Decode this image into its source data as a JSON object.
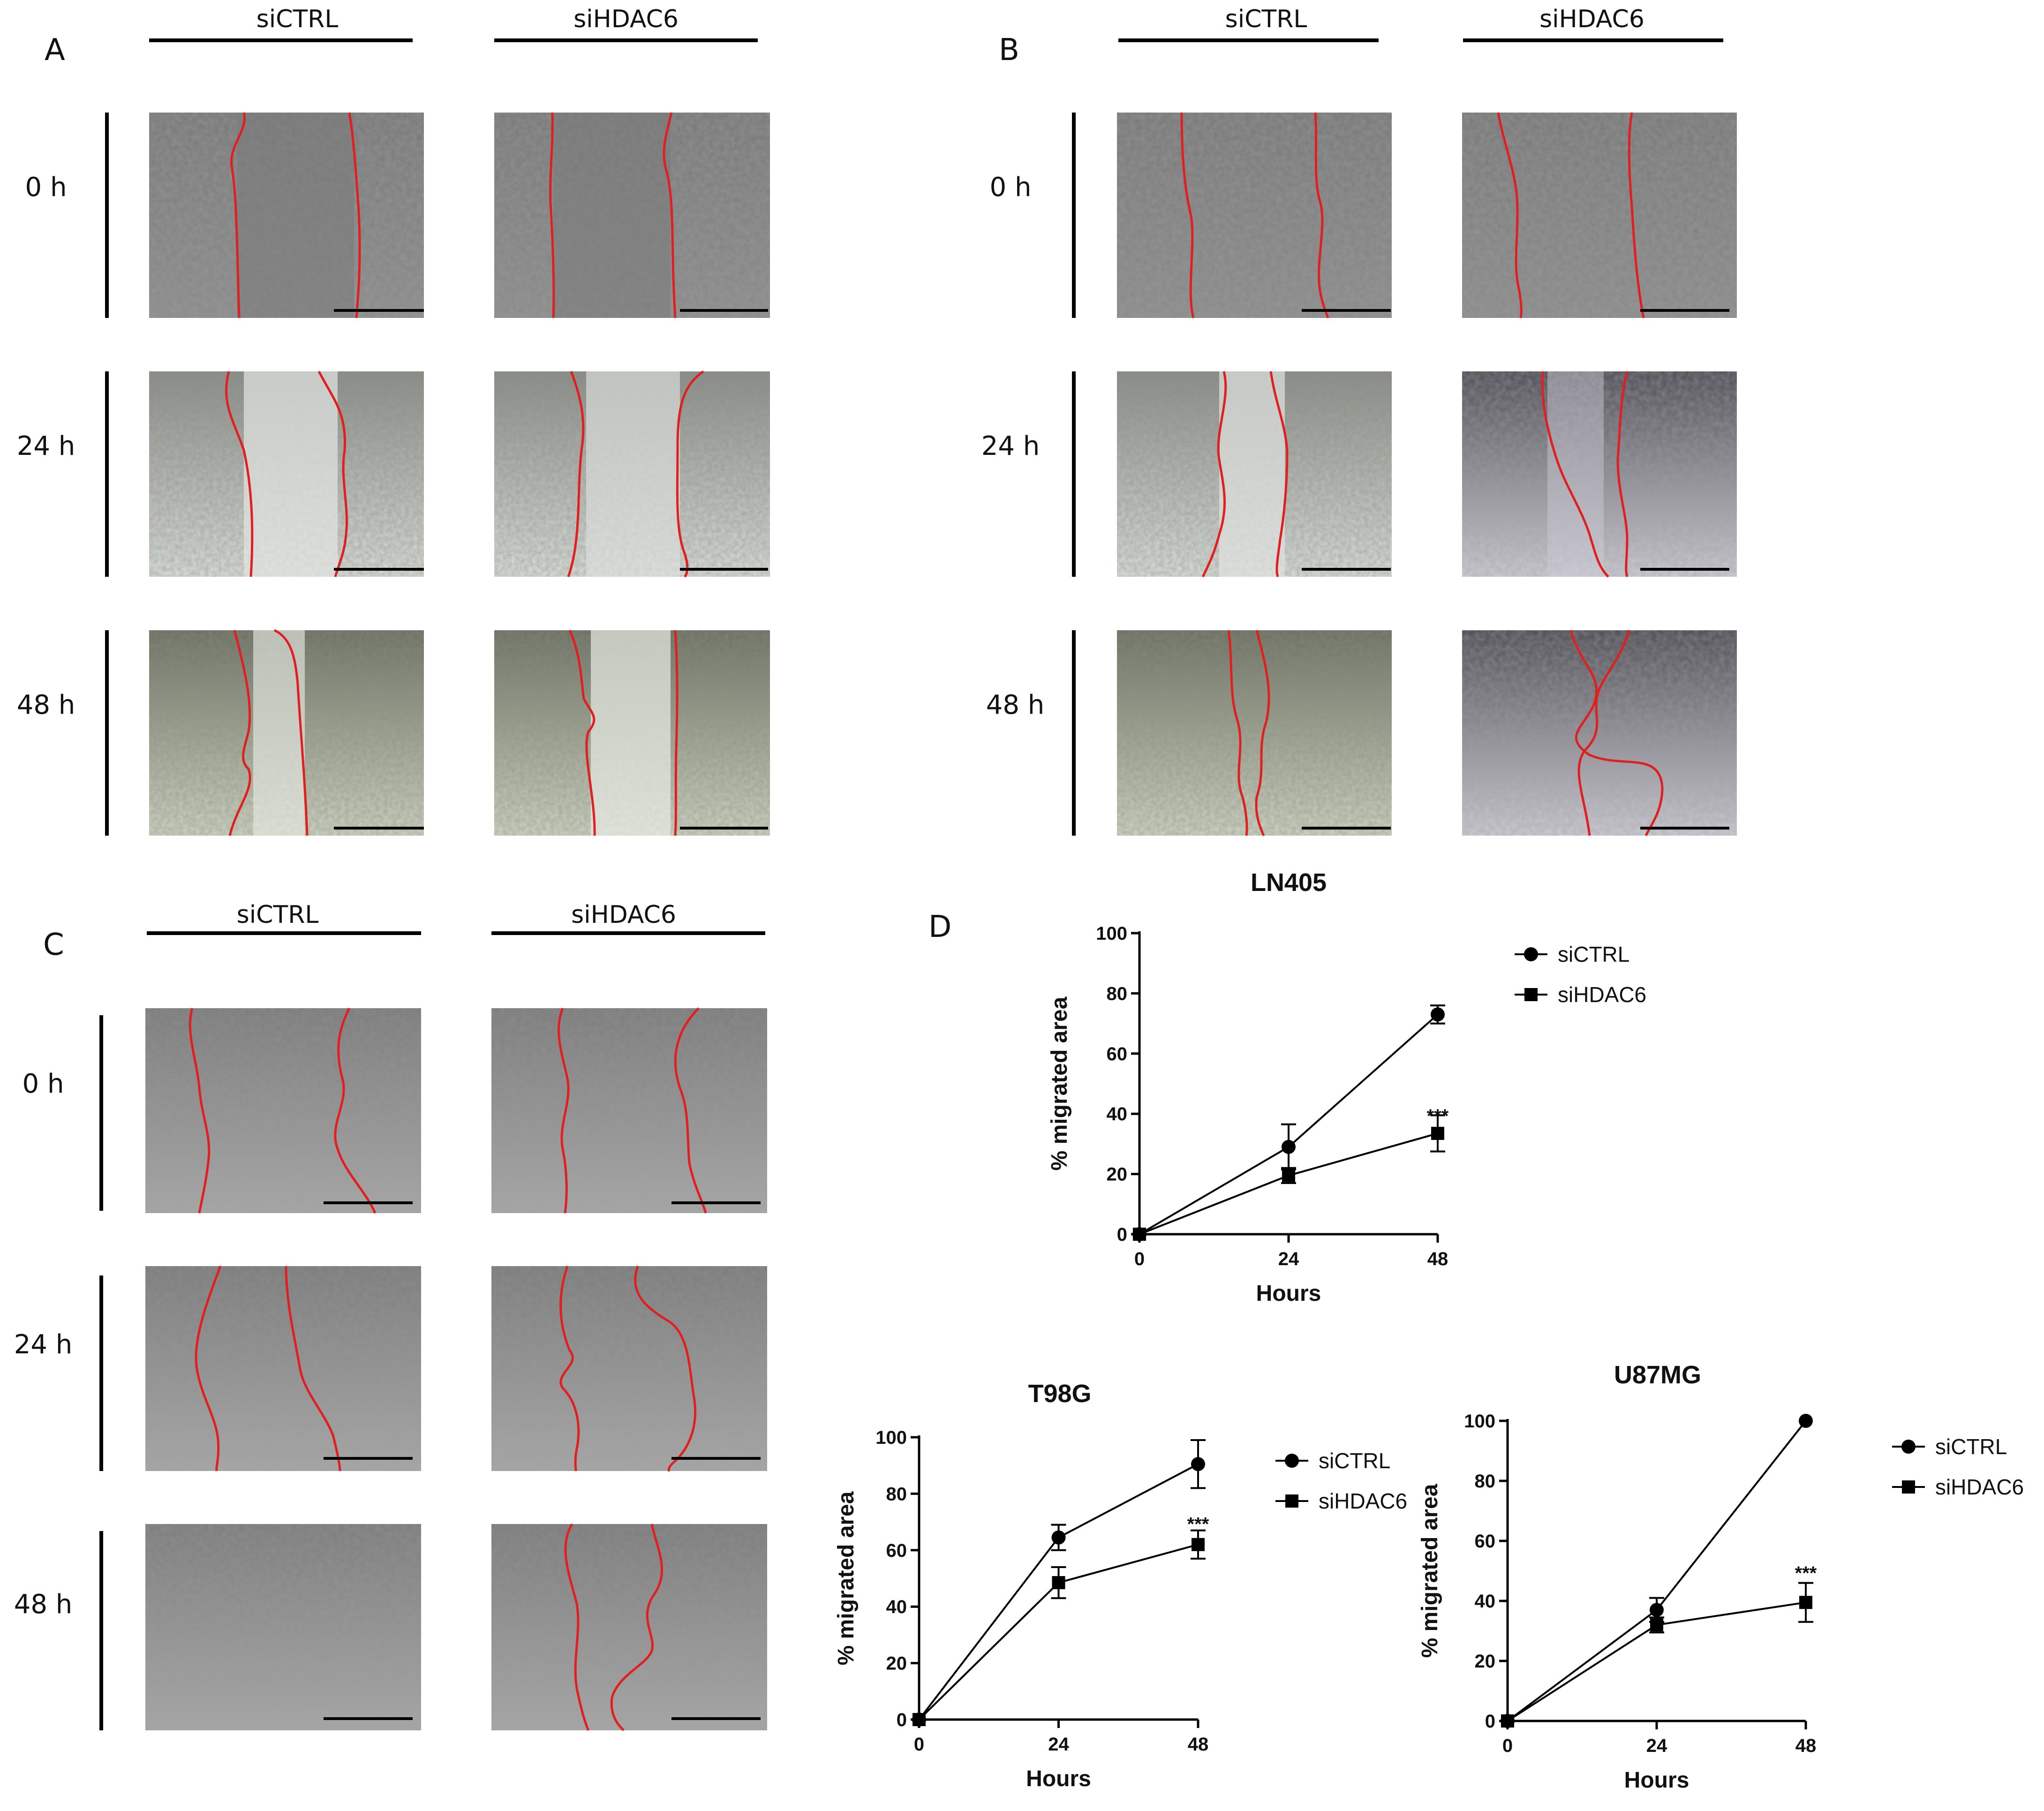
{
  "panels": {
    "A": {
      "letter": "A",
      "col1": "siCTRL",
      "col2": "siHDAC6",
      "rows": [
        "0 h",
        "24 h",
        "48 h"
      ]
    },
    "B": {
      "letter": "B",
      "col1": "siCTRL",
      "col2": "siHDAC6",
      "rows": [
        "0 h",
        "24 h",
        "48 h"
      ]
    },
    "C": {
      "letter": "C",
      "col1": "siCTRL",
      "col2": "siHDAC6",
      "rows": [
        "0 h",
        "24 h",
        "48 h"
      ]
    },
    "D": {
      "letter": "D"
    }
  },
  "colors": {
    "wound_edge": "#e02020",
    "tissue_dark": "#6e6e6e",
    "tissue_light": "#c8ccc4",
    "scale_bar": "#000000"
  },
  "chart_data": [
    {
      "type": "line",
      "title": "LN405",
      "xlabel": "Hours",
      "ylabel": "% migrated area",
      "x": [
        0,
        24,
        48
      ],
      "xticks": [
        0,
        24,
        48
      ],
      "yticks": [
        0,
        20,
        40,
        60,
        80,
        100
      ],
      "ylim": [
        0,
        100
      ],
      "legend_position": "top-right",
      "series": [
        {
          "name": "siCTRL",
          "marker": "circle",
          "values": [
            0,
            29,
            73
          ],
          "errors": [
            0,
            7.5,
            3
          ]
        },
        {
          "name": "siHDAC6",
          "marker": "square",
          "values": [
            0,
            19.5,
            33.5
          ],
          "errors": [
            0,
            2.5,
            6
          ]
        }
      ],
      "annotations": [
        {
          "x": 48,
          "y": 40,
          "text": "***"
        }
      ]
    },
    {
      "type": "line",
      "title": "T98G",
      "xlabel": "Hours",
      "ylabel": "% migrated area",
      "x": [
        0,
        24,
        48
      ],
      "xticks": [
        0,
        24,
        48
      ],
      "yticks": [
        0,
        20,
        40,
        60,
        80,
        100
      ],
      "ylim": [
        0,
        100
      ],
      "legend_position": "top-right",
      "series": [
        {
          "name": "siCTRL",
          "marker": "circle",
          "values": [
            0,
            64.5,
            90.5
          ],
          "errors": [
            0,
            4.5,
            8.5
          ]
        },
        {
          "name": "siHDAC6",
          "marker": "square",
          "values": [
            0,
            48.5,
            62
          ],
          "errors": [
            0,
            5.5,
            5
          ]
        }
      ],
      "annotations": [
        {
          "x": 48,
          "y": 70,
          "text": "***"
        }
      ]
    },
    {
      "type": "line",
      "title": "U87MG",
      "xlabel": "Hours",
      "ylabel": "% migrated area",
      "x": [
        0,
        24,
        48
      ],
      "xticks": [
        0,
        24,
        48
      ],
      "yticks": [
        0,
        20,
        40,
        60,
        80,
        100
      ],
      "ylim": [
        0,
        100
      ],
      "legend_position": "top-right",
      "series": [
        {
          "name": "siCTRL",
          "marker": "circle",
          "values": [
            0,
            37,
            100
          ],
          "errors": [
            0,
            4,
            0
          ]
        },
        {
          "name": "siHDAC6",
          "marker": "square",
          "values": [
            0,
            32,
            39.5
          ],
          "errors": [
            0,
            2.5,
            6.5
          ]
        }
      ],
      "annotations": [
        {
          "x": 48,
          "y": 50,
          "text": "***"
        }
      ]
    }
  ]
}
